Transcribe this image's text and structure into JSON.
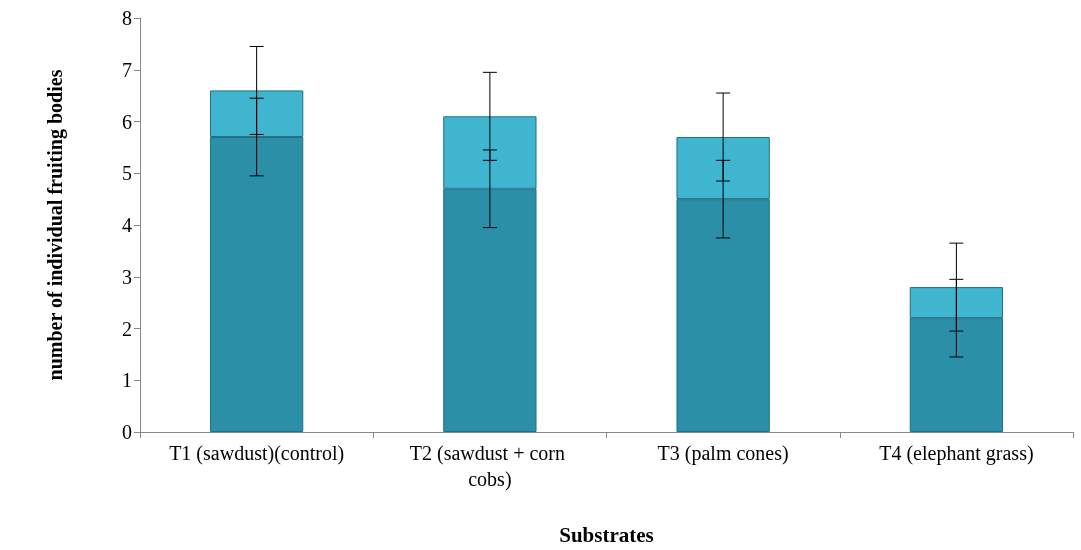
{
  "chart_data": {
    "type": "bar",
    "stacked": true,
    "xlabel": "Substrates",
    "ylabel": "number of individual fruiting bodies",
    "categories": [
      "T1 (sawdust)(control)",
      "T2 (sawdust + corn cobs)",
      "T3 (palm cones)",
      "T4 (elephant grass)"
    ],
    "series": [
      {
        "color": "#2b8fa8",
        "values": [
          5.7,
          4.7,
          4.5,
          2.2
        ],
        "errors": [
          0.75,
          0.75,
          0.75,
          0.75
        ]
      },
      {
        "color": "#3fb5d0",
        "values": [
          0.9,
          1.4,
          1.2,
          0.6
        ],
        "errors": [
          0.85,
          0.85,
          0.85,
          0.85
        ]
      }
    ],
    "ylim": [
      0,
      8
    ],
    "yticks": [
      0,
      1,
      2,
      3,
      4,
      5,
      6,
      7,
      8
    ],
    "grid": false
  }
}
